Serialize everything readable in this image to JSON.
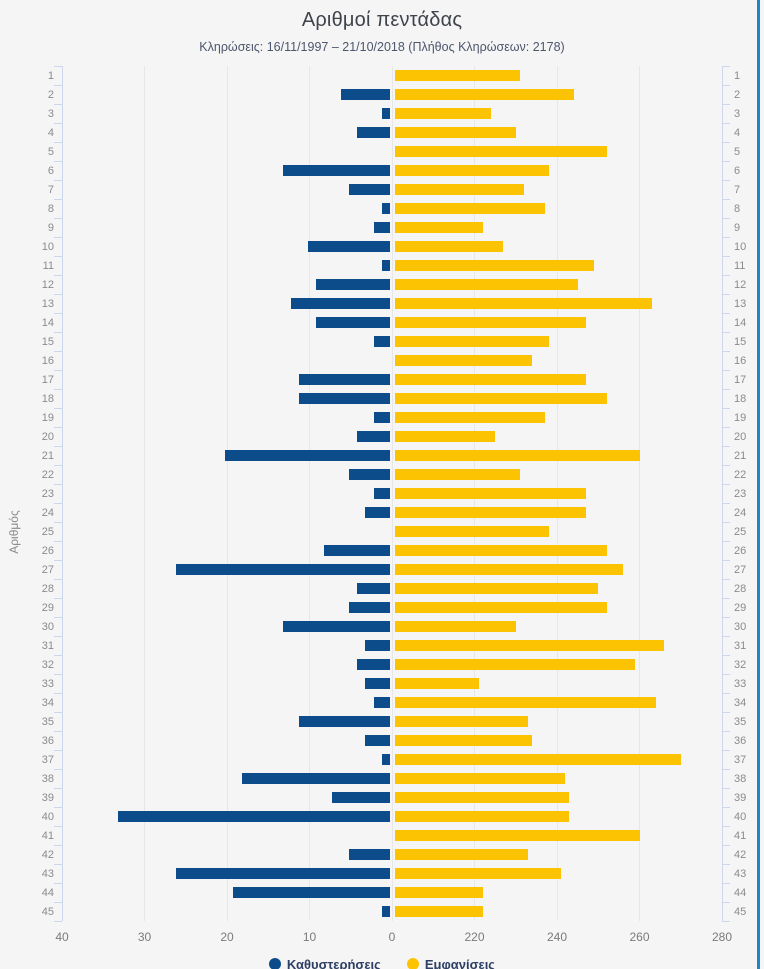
{
  "page": {
    "title": "Αριθμοί πεντάδας",
    "subtitle": "Κληρώσεις: 16/11/1997 – 21/10/2018 (Πλήθος Κληρώσεων: 2178)"
  },
  "colors": {
    "background": "#f5f5f5",
    "delay_bar": "#0d4c8b",
    "appearance_bar": "#fcc303",
    "axis_line": "#ccd6ec",
    "gridline": "#e7e7e7",
    "tick_label": "#7b7b7b",
    "row_label": "#8b8b8b",
    "title_text": "#3f434a",
    "subtitle_text": "#4c566c",
    "legend_text": "#2e3f63",
    "right_edge_line": "#1d86c8"
  },
  "axis": {
    "y_label": "Αριθμός",
    "x_tick_labels": [
      "40",
      "30",
      "20",
      "10",
      "0",
      "220",
      "240",
      "260",
      "280"
    ],
    "x_axis_break": "left segment 40→0 (step 10), right segment 220→280 (step 20), 0–220 compressed at the zero line"
  },
  "chart_data": {
    "type": "bar",
    "orientation": "horizontal-diverging",
    "title": "Αριθμοί πεντάδας",
    "subtitle": "Κληρώσεις: 16/11/1997 – 21/10/2018 (Πλήθος Κληρώσεων: 2178)",
    "ylabel": "Αριθμός",
    "total_draws": 2178,
    "grid": true,
    "legend_position": "bottom-center",
    "categories": [
      1,
      2,
      3,
      4,
      5,
      6,
      7,
      8,
      9,
      10,
      11,
      12,
      13,
      14,
      15,
      16,
      17,
      18,
      19,
      20,
      21,
      22,
      23,
      24,
      25,
      26,
      27,
      28,
      29,
      30,
      31,
      32,
      33,
      34,
      35,
      36,
      37,
      38,
      39,
      40,
      41,
      42,
      43,
      44,
      45
    ],
    "series": [
      {
        "name": "Καθυστερήσεις",
        "color": "#0d4c8b",
        "direction": "left",
        "axis_range": [
          0,
          40
        ],
        "values": [
          0,
          6,
          1,
          4,
          0,
          13,
          5,
          1,
          2,
          10,
          1,
          9,
          12,
          9,
          2,
          0,
          11,
          11,
          2,
          4,
          20,
          5,
          2,
          3,
          0,
          8,
          26,
          4,
          5,
          13,
          3,
          4,
          3,
          2,
          11,
          3,
          1,
          18,
          7,
          33,
          0,
          5,
          26,
          19,
          1
        ]
      },
      {
        "name": "Εμφανίσεις",
        "color": "#fcc303",
        "direction": "right",
        "axis_range": [
          220,
          280
        ],
        "values": [
          231,
          244,
          224,
          230,
          252,
          238,
          232,
          237,
          222,
          227,
          249,
          245,
          263,
          247,
          238,
          234,
          247,
          252,
          237,
          225,
          260,
          231,
          247,
          247,
          238,
          252,
          256,
          250,
          252,
          230,
          266,
          259,
          221,
          264,
          233,
          234,
          270,
          242,
          243,
          243,
          260,
          233,
          241,
          222,
          222
        ]
      }
    ]
  }
}
